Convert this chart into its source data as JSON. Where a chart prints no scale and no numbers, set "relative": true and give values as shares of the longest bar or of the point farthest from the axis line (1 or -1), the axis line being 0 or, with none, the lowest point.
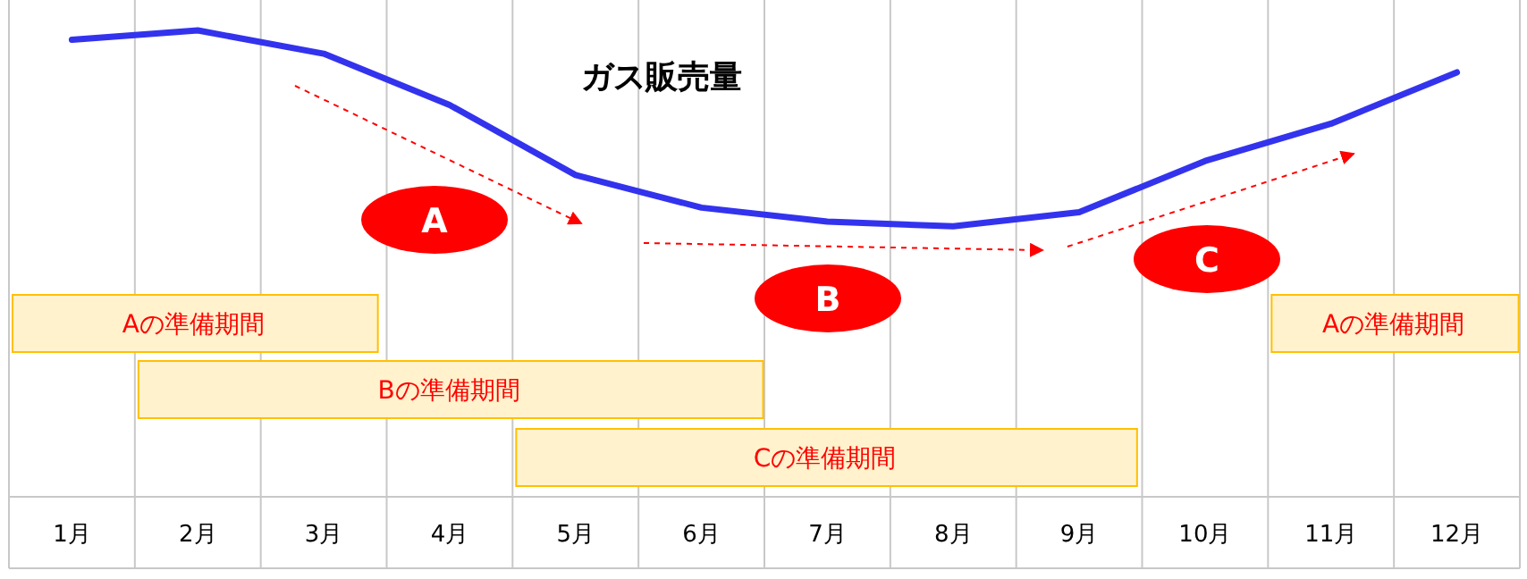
{
  "chart_data": {
    "type": "line",
    "title": "ガス販売量",
    "relative": true,
    "grid": "x",
    "categories": [
      "1月",
      "2月",
      "3月",
      "4月",
      "5月",
      "6月",
      "7月",
      "8月",
      "9月",
      "10月",
      "11月",
      "12月"
    ],
    "series": [
      {
        "color": "#3333ee",
        "values": [
          0.98,
          1,
          0.95,
          0.84,
          0.69,
          0.62,
          0.59,
          0.58,
          0.61,
          0.72,
          0.8,
          0.91
        ]
      }
    ],
    "annotations": [
      "A",
      "B",
      "C",
      "Aの準備期間",
      "Bの準備期間",
      "Cの準備期間",
      "Aの準備期間"
    ]
  }
}
